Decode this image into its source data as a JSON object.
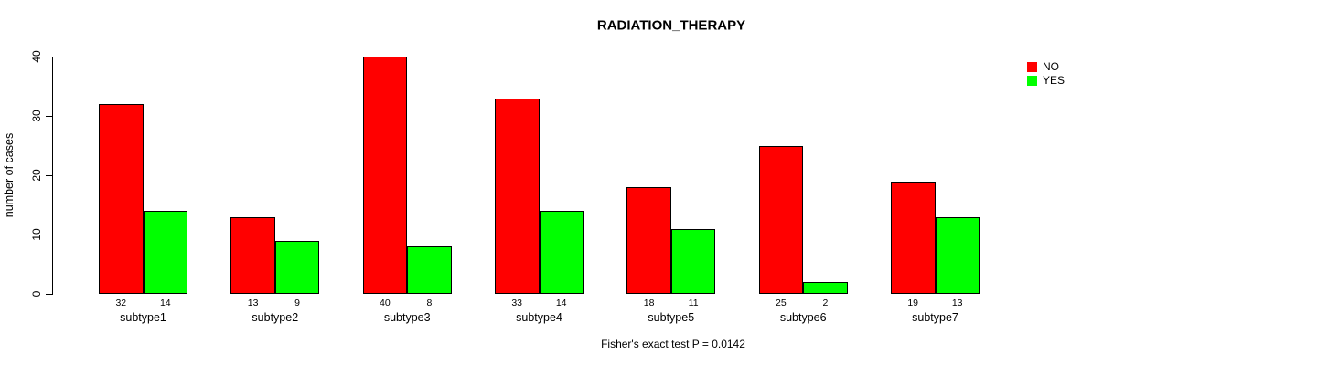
{
  "page": {
    "background": "#ffffff"
  },
  "chart_data": {
    "type": "bar",
    "title": "RADIATION_THERAPY",
    "ylabel": "number of cases",
    "xlabel": "",
    "footnote": "Fisher's exact test P = 0.0142",
    "categories": [
      "subtype1",
      "subtype2",
      "subtype3",
      "subtype4",
      "subtype5",
      "subtype6",
      "subtype7"
    ],
    "series": [
      {
        "name": "NO",
        "color": "#ff0000",
        "values": [
          32,
          13,
          40,
          33,
          18,
          25,
          19
        ]
      },
      {
        "name": "YES",
        "color": "#00ff00",
        "values": [
          14,
          9,
          8,
          14,
          11,
          2,
          13
        ]
      }
    ],
    "bar_value_labels": {
      "NO": [
        32,
        13,
        40,
        33,
        18,
        25,
        19
      ],
      "YES": [
        14,
        9,
        8,
        14,
        11,
        2,
        13
      ]
    },
    "ylim": [
      0,
      40
    ],
    "yticks": [
      0,
      10,
      20,
      30,
      40
    ],
    "grid": false,
    "legend_position": "topright",
    "legend_entries": [
      "NO",
      "YES"
    ]
  }
}
